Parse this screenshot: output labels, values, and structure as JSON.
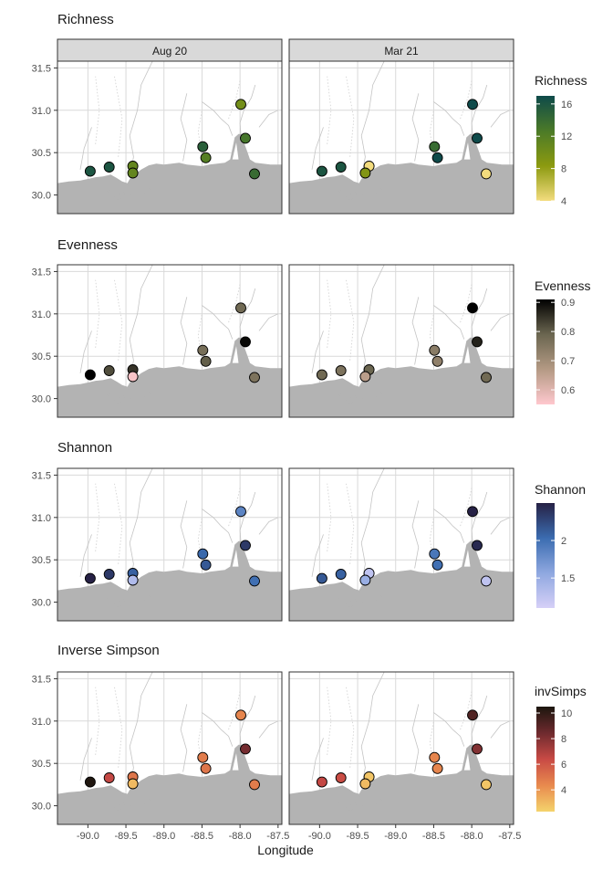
{
  "figure": {
    "xlabel": "Longitude",
    "x_ticks": [
      -90.0,
      -89.5,
      -89.0,
      -88.5,
      -88.0,
      -87.5
    ],
    "x_tick_labels": [
      "-90.0",
      "-89.5",
      "-89.0",
      "-88.5",
      "-88.0",
      "-87.5"
    ],
    "y_ticks": [
      30.0,
      30.5,
      31.0,
      31.5
    ],
    "y_tick_labels": [
      "30.0",
      "30.5",
      "31.0",
      "31.5"
    ],
    "xlim": [
      -90.4,
      -87.45
    ],
    "ylim": [
      29.78,
      31.58
    ],
    "facet_labels": [
      "Aug 20",
      "Mar 21"
    ],
    "basemap": "gray coastline land mass along the northern Gulf coast"
  },
  "colors": {
    "facet_strip_bg": "#d9d9d9",
    "land": "#b3b3b3",
    "grid": "#d9d9d9",
    "panel_border": "#333333",
    "point_outline": "#000000"
  },
  "chart_data": [
    {
      "type": "scatter",
      "title": "Richness",
      "legend_title": "Richness",
      "legend_ticks": [
        4,
        8,
        12,
        16
      ],
      "legend_range": [
        4,
        17
      ],
      "color_stops": [
        "#f3dc7e",
        "#8c9a10",
        "#4b7a28",
        "#0e4a4a"
      ],
      "facets": [
        {
          "label": "Aug 20",
          "points": [
            {
              "x": -89.97,
              "y": 30.28,
              "value": 16
            },
            {
              "x": -89.72,
              "y": 30.33,
              "value": 16
            },
            {
              "x": -89.41,
              "y": 30.34,
              "value": 11
            },
            {
              "x": -89.41,
              "y": 30.26,
              "value": 11
            },
            {
              "x": -88.49,
              "y": 30.57,
              "value": 15
            },
            {
              "x": -88.45,
              "y": 30.44,
              "value": 12
            },
            {
              "x": -87.99,
              "y": 31.07,
              "value": 10
            },
            {
              "x": -87.93,
              "y": 30.67,
              "value": 13
            },
            {
              "x": -87.81,
              "y": 30.25,
              "value": 14
            }
          ]
        },
        {
          "label": "Mar 21",
          "points": [
            {
              "x": -89.97,
              "y": 30.28,
              "value": 16
            },
            {
              "x": -89.72,
              "y": 30.33,
              "value": 16
            },
            {
              "x": -89.35,
              "y": 30.34,
              "value": 4
            },
            {
              "x": -89.4,
              "y": 30.26,
              "value": 9
            },
            {
              "x": -88.49,
              "y": 30.57,
              "value": 14
            },
            {
              "x": -88.45,
              "y": 30.44,
              "value": 17
            },
            {
              "x": -87.99,
              "y": 31.07,
              "value": 17
            },
            {
              "x": -87.93,
              "y": 30.67,
              "value": 17
            },
            {
              "x": -87.81,
              "y": 30.25,
              "value": 4
            }
          ]
        }
      ]
    },
    {
      "type": "scatter",
      "title": "Evenness",
      "legend_title": "Evenness",
      "legend_ticks": [
        0.6,
        0.7,
        0.8,
        0.9
      ],
      "legend_range": [
        0.55,
        0.91
      ],
      "color_stops": [
        "#ffc8ce",
        "#b49a84",
        "#6b6650",
        "#000000"
      ],
      "facets": [
        {
          "label": "Aug 20",
          "points": [
            {
              "x": -89.97,
              "y": 30.28,
              "value": 0.91
            },
            {
              "x": -89.72,
              "y": 30.33,
              "value": 0.82
            },
            {
              "x": -89.41,
              "y": 30.34,
              "value": 0.85
            },
            {
              "x": -89.41,
              "y": 30.26,
              "value": 0.56
            },
            {
              "x": -88.49,
              "y": 30.57,
              "value": 0.77
            },
            {
              "x": -88.45,
              "y": 30.44,
              "value": 0.8
            },
            {
              "x": -87.99,
              "y": 31.07,
              "value": 0.78
            },
            {
              "x": -87.93,
              "y": 30.67,
              "value": 0.9
            },
            {
              "x": -87.81,
              "y": 30.25,
              "value": 0.76
            }
          ]
        },
        {
          "label": "Mar 21",
          "points": [
            {
              "x": -89.97,
              "y": 30.28,
              "value": 0.78
            },
            {
              "x": -89.72,
              "y": 30.33,
              "value": 0.76
            },
            {
              "x": -89.35,
              "y": 30.34,
              "value": 0.79
            },
            {
              "x": -89.4,
              "y": 30.26,
              "value": 0.66
            },
            {
              "x": -88.49,
              "y": 30.57,
              "value": 0.74
            },
            {
              "x": -88.45,
              "y": 30.44,
              "value": 0.73
            },
            {
              "x": -87.99,
              "y": 31.07,
              "value": 0.91
            },
            {
              "x": -87.93,
              "y": 30.67,
              "value": 0.87
            },
            {
              "x": -87.81,
              "y": 30.25,
              "value": 0.78
            }
          ]
        }
      ]
    },
    {
      "type": "scatter",
      "title": "Shannon",
      "legend_title": "Shannon",
      "legend_ticks": [
        1.5,
        2.0
      ],
      "legend_range": [
        1.1,
        2.5
      ],
      "color_stops": [
        "#d6d0f7",
        "#8fa8e0",
        "#3b6cb0",
        "#262145"
      ],
      "facets": [
        {
          "label": "Aug 20",
          "points": [
            {
              "x": -89.97,
              "y": 30.28,
              "value": 2.5
            },
            {
              "x": -89.72,
              "y": 30.33,
              "value": 2.35
            },
            {
              "x": -89.41,
              "y": 30.34,
              "value": 2.1
            },
            {
              "x": -89.41,
              "y": 30.26,
              "value": 1.35
            },
            {
              "x": -88.49,
              "y": 30.57,
              "value": 2.05
            },
            {
              "x": -88.45,
              "y": 30.44,
              "value": 2.15
            },
            {
              "x": -87.99,
              "y": 31.07,
              "value": 1.85
            },
            {
              "x": -87.93,
              "y": 30.67,
              "value": 2.35
            },
            {
              "x": -87.81,
              "y": 30.25,
              "value": 2.0
            }
          ]
        },
        {
          "label": "Mar 21",
          "points": [
            {
              "x": -89.97,
              "y": 30.28,
              "value": 2.15
            },
            {
              "x": -89.72,
              "y": 30.33,
              "value": 2.1
            },
            {
              "x": -89.35,
              "y": 30.34,
              "value": 1.25
            },
            {
              "x": -89.4,
              "y": 30.26,
              "value": 1.5
            },
            {
              "x": -88.49,
              "y": 30.57,
              "value": 1.95
            },
            {
              "x": -88.45,
              "y": 30.44,
              "value": 2.0
            },
            {
              "x": -87.99,
              "y": 31.07,
              "value": 2.5
            },
            {
              "x": -87.93,
              "y": 30.67,
              "value": 2.45
            },
            {
              "x": -87.81,
              "y": 30.25,
              "value": 1.25
            }
          ]
        }
      ]
    },
    {
      "type": "scatter",
      "title": "Inverse Simpson",
      "legend_title": "invSimps",
      "legend_ticks": [
        4,
        6,
        8,
        10
      ],
      "legend_range": [
        2.3,
        10.5
      ],
      "color_stops": [
        "#f4d36c",
        "#e88a4e",
        "#c84a45",
        "#6e2a2e",
        "#1c160e"
      ],
      "facets": [
        {
          "label": "Aug 20",
          "points": [
            {
              "x": -89.97,
              "y": 30.28,
              "value": 10.4
            },
            {
              "x": -89.72,
              "y": 30.33,
              "value": 6.5
            },
            {
              "x": -89.41,
              "y": 30.34,
              "value": 5.0
            },
            {
              "x": -89.41,
              "y": 30.26,
              "value": 3.0
            },
            {
              "x": -88.49,
              "y": 30.57,
              "value": 4.8
            },
            {
              "x": -88.45,
              "y": 30.44,
              "value": 5.0
            },
            {
              "x": -87.99,
              "y": 31.07,
              "value": 4.5
            },
            {
              "x": -87.93,
              "y": 30.67,
              "value": 8.3
            },
            {
              "x": -87.81,
              "y": 30.25,
              "value": 4.8
            }
          ]
        },
        {
          "label": "Mar 21",
          "points": [
            {
              "x": -89.97,
              "y": 30.28,
              "value": 6.5
            },
            {
              "x": -89.72,
              "y": 30.33,
              "value": 6.3
            },
            {
              "x": -89.35,
              "y": 30.34,
              "value": 2.7
            },
            {
              "x": -89.4,
              "y": 30.26,
              "value": 3.0
            },
            {
              "x": -88.49,
              "y": 30.57,
              "value": 4.5
            },
            {
              "x": -88.45,
              "y": 30.44,
              "value": 4.5
            },
            {
              "x": -87.99,
              "y": 31.07,
              "value": 9.2
            },
            {
              "x": -87.93,
              "y": 30.67,
              "value": 8.0
            },
            {
              "x": -87.81,
              "y": 30.25,
              "value": 2.7
            }
          ]
        }
      ]
    }
  ]
}
